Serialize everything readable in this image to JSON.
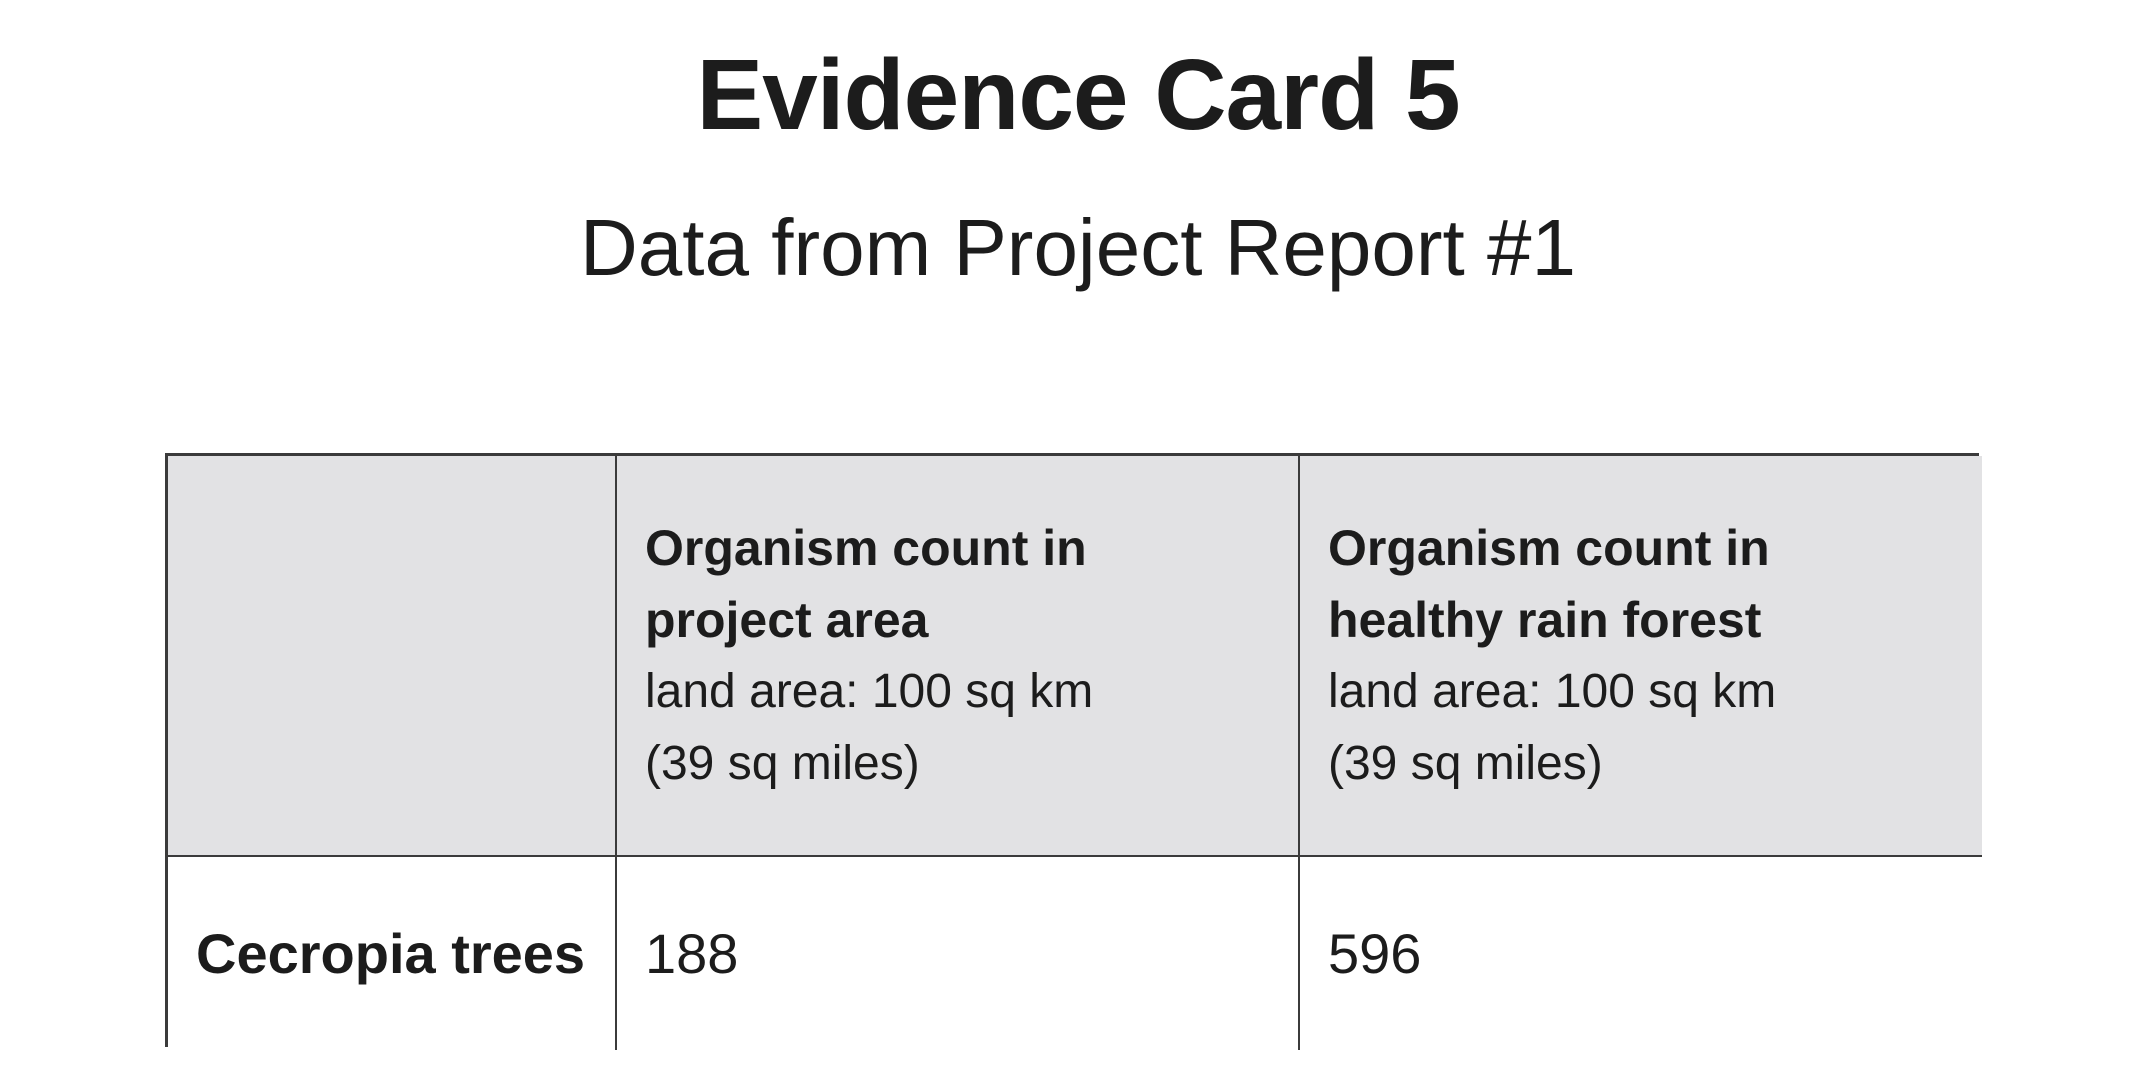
{
  "page": {
    "title": "Evidence Card 5",
    "subtitle": "Data from Project Report #1"
  },
  "table": {
    "columns": [
      {
        "title_lines": [
          "",
          ""
        ],
        "sub_lines": [
          "",
          ""
        ]
      },
      {
        "title_lines": [
          "Organism count in",
          "project area"
        ],
        "sub_lines": [
          "land area: 100 sq km",
          "(39 sq miles)"
        ]
      },
      {
        "title_lines": [
          "Organism count in",
          "healthy rain forest"
        ],
        "sub_lines": [
          "land area: 100 sq km",
          "(39 sq miles)"
        ]
      }
    ],
    "rows": [
      {
        "label": "Cecropia trees",
        "values": [
          "188",
          "596"
        ]
      }
    ]
  },
  "colors": {
    "header_background": "#e2e2e4",
    "border": "#3b3b3b",
    "text": "#1c1c1c",
    "page_background": "#ffffff"
  }
}
